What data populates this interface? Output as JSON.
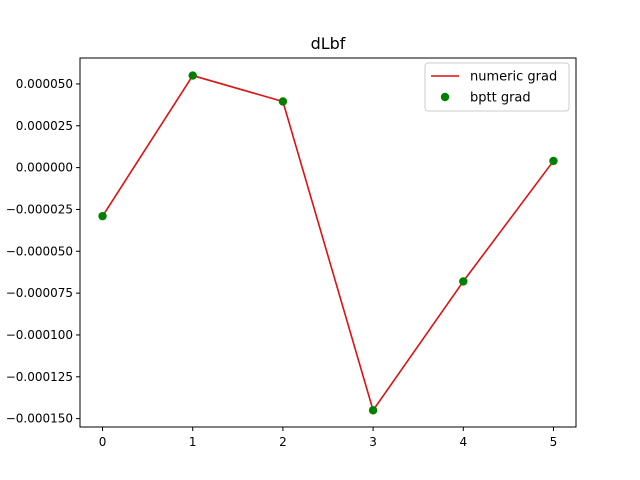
{
  "chart_data": {
    "type": "line",
    "title": "dLbf",
    "xlabel": "",
    "ylabel": "",
    "x": [
      0,
      1,
      2,
      3,
      4,
      5
    ],
    "xlim": [
      -0.25,
      5.25
    ],
    "ylim": [
      -0.000155,
      6.55e-05
    ],
    "xticks": [
      0,
      1,
      2,
      3,
      4,
      5
    ],
    "xtick_labels": [
      "0",
      "1",
      "2",
      "3",
      "4",
      "5"
    ],
    "yticks": [
      5e-05,
      2.5e-05,
      0.0,
      -2.5e-05,
      -5e-05,
      -7.5e-05,
      -0.0001,
      -0.000125,
      -0.00015
    ],
    "ytick_labels": [
      "0.000050",
      "0.000025",
      "0.000000",
      "−0.000025",
      "−0.000050",
      "−0.000075",
      "−0.000100",
      "−0.000125",
      "−0.000150"
    ],
    "grid": false,
    "legend_position": "top-right",
    "series": [
      {
        "name": "numeric grad",
        "style": "line",
        "color": "#dd1111",
        "values": [
          -2.9e-05,
          5.5e-05,
          3.95e-05,
          -0.000145,
          -6.8e-05,
          4e-06
        ]
      },
      {
        "name": "bptt grad",
        "style": "markers",
        "color": "#008000",
        "values": [
          -2.9e-05,
          5.5e-05,
          3.95e-05,
          -0.000145,
          -6.8e-05,
          4e-06
        ]
      }
    ]
  }
}
